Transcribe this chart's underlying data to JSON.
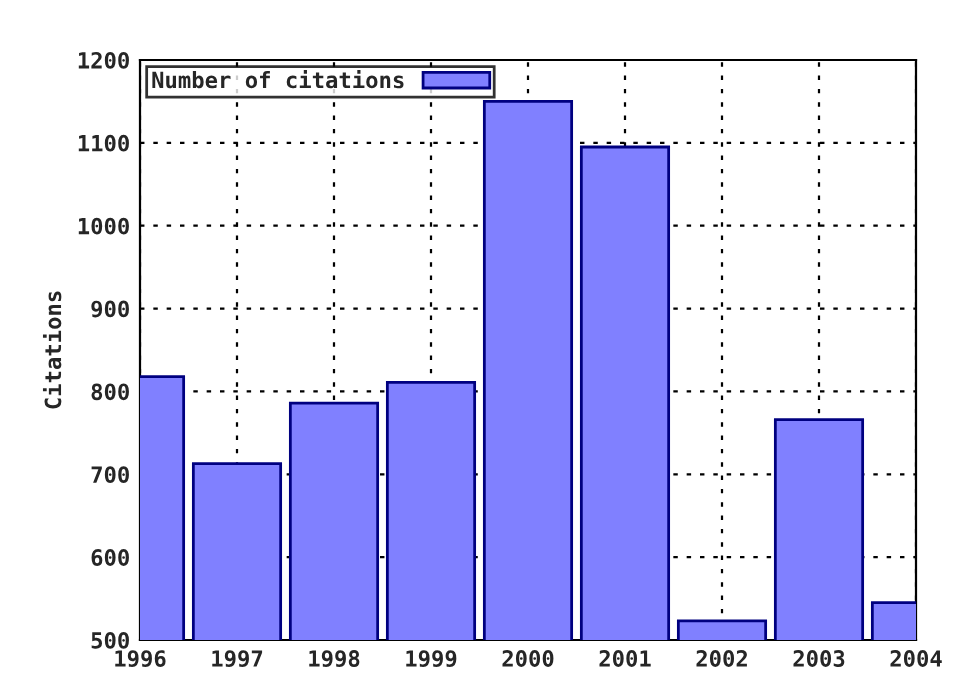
{
  "chart_data": {
    "type": "bar",
    "ylabel": "Citations",
    "x": [
      1996,
      1997,
      1998,
      1999,
      2000,
      2001,
      2002,
      2003,
      2004
    ],
    "series": [
      {
        "name": "Number of citations",
        "color": "#8080ff",
        "values": [
          818,
          713,
          786,
          811,
          1150,
          1095,
          523,
          766,
          545
        ]
      }
    ],
    "xlim": [
      1996,
      2004
    ],
    "xticks": [
      1996,
      1997,
      1998,
      1999,
      2000,
      2001,
      2002,
      2003,
      2004
    ],
    "ylim": [
      500,
      1200
    ],
    "yticks": [
      500,
      600,
      700,
      800,
      900,
      1000,
      1100,
      1200
    ],
    "grid": true,
    "legend": "top left"
  }
}
